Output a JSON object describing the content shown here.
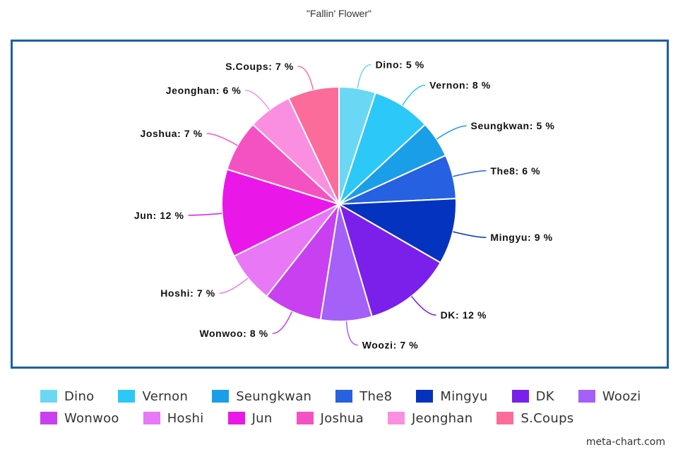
{
  "chart_data": {
    "type": "pie",
    "title": "\"Fallin' Flower\"",
    "slices": [
      {
        "label": "Dino",
        "value": 5,
        "color": "#6ad8f5"
      },
      {
        "label": "Vernon",
        "value": 8,
        "color": "#2bc8f8"
      },
      {
        "label": "Seungkwan",
        "value": 5,
        "color": "#1a9ee8"
      },
      {
        "label": "The8",
        "value": 6,
        "color": "#2561e0"
      },
      {
        "label": "Mingyu",
        "value": 9,
        "color": "#0433c0"
      },
      {
        "label": "DK",
        "value": 12,
        "color": "#7a20ea"
      },
      {
        "label": "Woozi",
        "value": 7,
        "color": "#a560f7"
      },
      {
        "label": "Wonwoo",
        "value": 8,
        "color": "#c840f0"
      },
      {
        "label": "Hoshi",
        "value": 7,
        "color": "#e878f5"
      },
      {
        "label": "Jun",
        "value": 12,
        "color": "#e918e8"
      },
      {
        "label": "Joshua",
        "value": 7,
        "color": "#f452c2"
      },
      {
        "label": "Jeonghan",
        "value": 6,
        "color": "#fa8fe0"
      },
      {
        "label": "S.Coups",
        "value": 7,
        "color": "#fb6c9b"
      }
    ],
    "slice_labels": [
      "Dino: 5 %",
      "Vernon: 8 %",
      "Seungkwan: 5 %",
      "The8: 6 %",
      "Mingyu: 9 %",
      "DK: 12 %",
      "Woozi: 7 %",
      "Wonwoo: 8 %",
      "Hoshi: 7 %",
      "Jun: 12 %",
      "Joshua: 7 %",
      "Jeonghan: 6 %",
      "S.Coups: 7 %"
    ],
    "legend_placement": "bottom"
  },
  "legend_rows": [
    [
      "Dino",
      "Vernon",
      "Seungkwan",
      "The8",
      "Mingyu",
      "DK",
      "Woozi"
    ],
    [
      "Wonwoo",
      "Hoshi",
      "Jun",
      "Joshua",
      "Jeonghan",
      "S.Coups"
    ]
  ],
  "frame_color": "#1f5fa0",
  "credit": "meta-chart.com"
}
